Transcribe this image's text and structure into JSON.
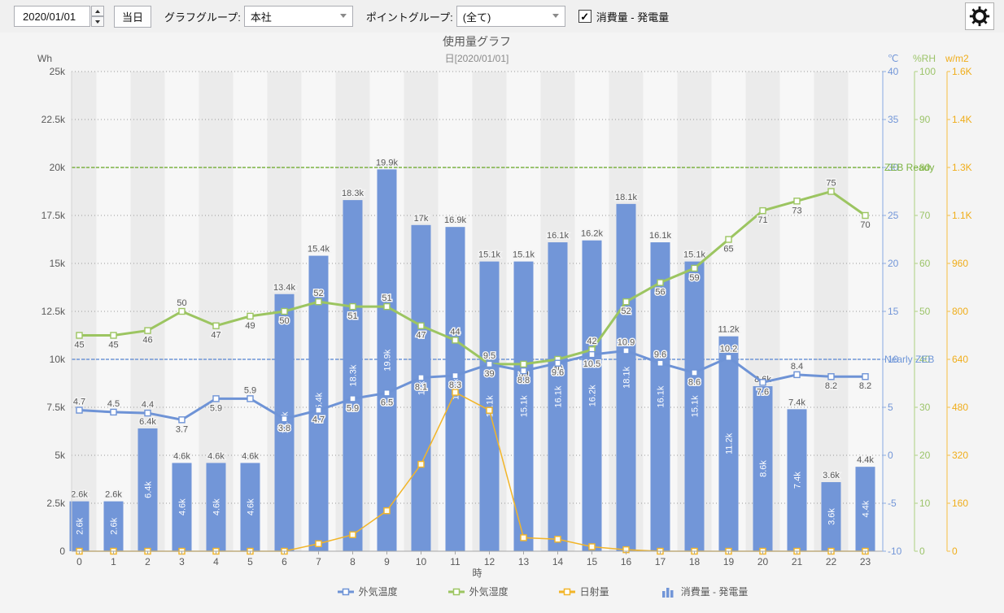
{
  "toolbar": {
    "date_value": "2020/01/01",
    "today_button": "当日",
    "graph_group_label": "グラフグループ:",
    "graph_group_value": "本社",
    "point_group_label": "ポイントグループ:",
    "point_group_value": "(全て)",
    "series_checkbox_label": "消費量 - 発電量",
    "checkbox_checked": true
  },
  "chart_data": {
    "type": "bar",
    "title": "使用量グラフ",
    "subtitle": "日[2020/01/01]",
    "x": [
      0,
      1,
      2,
      3,
      4,
      5,
      6,
      7,
      8,
      9,
      10,
      11,
      12,
      13,
      14,
      15,
      16,
      17,
      18,
      19,
      20,
      21,
      22,
      23
    ],
    "xlabel": "時",
    "axes": {
      "wh": {
        "label": "Wh",
        "min": 0,
        "max": 25000,
        "tick_labels": [
          "0",
          "2.5k",
          "5k",
          "7.5k",
          "10k",
          "12.5k",
          "15k",
          "17.5k",
          "20k",
          "22.5k",
          "25k"
        ]
      },
      "temp": {
        "label": "℃",
        "min": -10,
        "max": 40,
        "tick_labels": [
          "-10",
          "-5",
          "0",
          "5",
          "10",
          "15",
          "20",
          "25",
          "30",
          "35",
          "40"
        ]
      },
      "rh": {
        "label": "%RH",
        "min": 0,
        "max": 100,
        "tick_labels": [
          "0",
          "10",
          "20",
          "30",
          "40",
          "50",
          "60",
          "70",
          "80",
          "90",
          "100"
        ]
      },
      "solar": {
        "label": "w/m2",
        "min": 0,
        "max": 1600,
        "tick_labels": [
          "0",
          "160",
          "320",
          "480",
          "640",
          "800",
          "960",
          "1.1K",
          "1.3K",
          "1.4K",
          "1.6K"
        ]
      }
    },
    "series": [
      {
        "key": "consumption",
        "name": "消費量 - 発電量",
        "type": "bar",
        "axis": "wh",
        "color": "#7296d8",
        "values": [
          2600,
          2600,
          6400,
          4600,
          4600,
          4600,
          13400,
          15400,
          18300,
          19900,
          17000,
          16900,
          15100,
          15100,
          16100,
          16200,
          18100,
          16100,
          15100,
          11200,
          8600,
          7400,
          3600,
          4400
        ],
        "labels": [
          "2.6k",
          "2.6k",
          "6.4k",
          "4.6k",
          "4.6k",
          "4.6k",
          "13.4k",
          "15.4k",
          "18.3k",
          "19.9k",
          "17k",
          "16.9k",
          "15.1k",
          "15.1k",
          "16.1k",
          "16.2k",
          "18.1k",
          "16.1k",
          "15.1k",
          "11.2k",
          "8.6k",
          "7.4k",
          "3.6k",
          "4.4k"
        ]
      },
      {
        "key": "temp",
        "name": "外気温度",
        "type": "line",
        "axis": "temp",
        "color": "#6e93d6",
        "values": [
          4.7,
          4.5,
          4.4,
          3.7,
          5.9,
          5.9,
          3.8,
          4.7,
          5.9,
          6.5,
          8.1,
          8.3,
          9.5,
          8.8,
          9.6,
          10.5,
          10.9,
          9.6,
          8.6,
          10.2,
          7.6,
          8.4,
          8.2,
          8.2
        ],
        "label_side": [
          "a",
          "a",
          "a",
          "b",
          "b",
          "a",
          "b",
          "b",
          "b",
          "b",
          "b",
          "b",
          "a",
          "b",
          "b",
          "b",
          "a",
          "a",
          "b",
          "a",
          "b",
          "a",
          "b",
          "b"
        ]
      },
      {
        "key": "rh",
        "name": "外気湿度",
        "type": "line",
        "axis": "rh",
        "color": "#9cc561",
        "values": [
          45,
          45,
          46,
          50,
          47,
          49,
          50,
          52,
          51,
          51,
          47,
          44,
          39,
          39,
          40,
          42,
          52,
          56,
          59,
          65,
          71,
          73,
          75,
          70
        ],
        "label_side": [
          "b",
          "b",
          "b",
          "a",
          "b",
          "b",
          "b",
          "a",
          "b",
          "a",
          "b",
          "a",
          "b",
          "b",
          "b",
          "a",
          "b",
          "b",
          "b",
          "b",
          "b",
          "b",
          "a",
          "b"
        ]
      },
      {
        "key": "solar",
        "name": "日射量",
        "type": "line",
        "axis": "solar",
        "color": "#f2b528",
        "values": [
          0,
          0,
          0,
          0,
          0,
          0,
          0,
          25,
          55,
          135,
          290,
          530,
          470,
          45,
          40,
          15,
          5,
          0,
          0,
          0,
          0,
          0,
          0,
          0
        ]
      }
    ],
    "reference_lines": [
      {
        "label": "ZEB Ready",
        "axis": "wh",
        "value": 20000,
        "color": "#7cb342"
      },
      {
        "label": "Nearly ZEB",
        "axis": "wh",
        "value": 10000,
        "color": "#6e96d8"
      }
    ],
    "legend": [
      {
        "label": "外気温度",
        "type": "line",
        "color": "#6e93d6"
      },
      {
        "label": "外気湿度",
        "type": "line",
        "color": "#9cc561"
      },
      {
        "label": "日射量",
        "type": "line",
        "color": "#f2b528"
      },
      {
        "label": "消費量 - 発電量",
        "type": "bar",
        "color": "#7296d8"
      }
    ]
  }
}
